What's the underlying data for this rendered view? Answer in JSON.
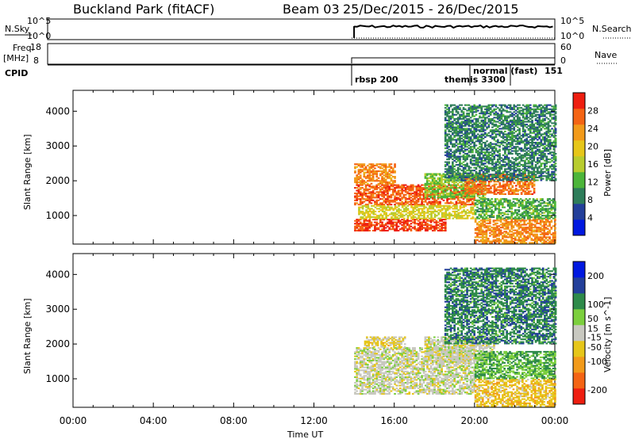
{
  "header": {
    "station": "Buckland Park (fitACF)",
    "beam": "Beam 03",
    "date_range": "25/Dec/2015 - 26/Dec/2015"
  },
  "noise_panel": {
    "left_label": "N.Sky",
    "left_ticks": [
      "10^5",
      "10^0"
    ],
    "right_ticks": [
      "10^5",
      "10^0"
    ],
    "right_label": "N.Search"
  },
  "freq_panel": {
    "left_label_1": "Freq.",
    "left_label_2": "[MHz]",
    "left_ticks": [
      "18",
      "8"
    ],
    "right_ticks": [
      "60",
      "0"
    ],
    "right_label": "Nave"
  },
  "cpid": {
    "label": "CPID",
    "segments": [
      {
        "name": "rbsp 200",
        "start_hour": 14.0
      },
      {
        "name": "themis 3300",
        "start_hour": 20.0
      },
      {
        "name": "normal (fast)",
        "start_hour": 20.0
      },
      {
        "name": "151",
        "start_hour": 22.0
      }
    ]
  },
  "x_axis": {
    "label": "Time UT",
    "ticks": [
      "00:00",
      "04:00",
      "08:00",
      "12:00",
      "16:00",
      "20:00",
      "00:00"
    ]
  },
  "colors": {
    "power_scale": [
      "#0018e0",
      "#233f9a",
      "#2e7d5a",
      "#4cb53a",
      "#b8cc2e",
      "#e6c619",
      "#f29a1a",
      "#f46414",
      "#ee1e10"
    ],
    "velocity_scale": [
      "#ee1e10",
      "#f46414",
      "#f29a1a",
      "#e6c619",
      "#c8c8c0",
      "#7ccf3e",
      "#2e8a4a",
      "#233f9a",
      "#0018e0"
    ]
  },
  "chart_data": [
    {
      "type": "heatmap",
      "name": "power",
      "ylabel": "Slant Range [km]",
      "yticks": [
        "1000",
        "2000",
        "3000",
        "4000"
      ],
      "ylim": [
        180,
        4600
      ],
      "xlim": [
        0,
        24
      ],
      "colorbar_label": "Power [dB]",
      "colorbar_ticks": [
        "4",
        "8",
        "12",
        "16",
        "20",
        "24",
        "28"
      ],
      "colorbar_range": [
        0,
        32
      ],
      "regions": [
        {
          "t0": 14.0,
          "t1": 20.0,
          "r0": 1300,
          "r1": 1900,
          "value": 27
        },
        {
          "t0": 14.0,
          "t1": 16.0,
          "r0": 1900,
          "r1": 2500,
          "value": 24
        },
        {
          "t0": 14.0,
          "t1": 18.5,
          "r0": 550,
          "r1": 900,
          "value": 29
        },
        {
          "t0": 14.2,
          "t1": 20.0,
          "r0": 900,
          "r1": 1300,
          "value": 18
        },
        {
          "t0": 17.5,
          "t1": 20.5,
          "r0": 1500,
          "r1": 2200,
          "value": 14
        },
        {
          "t0": 19.5,
          "t1": 23.0,
          "r0": 1600,
          "r1": 2200,
          "value": 26
        },
        {
          "t0": 20.0,
          "t1": 24.0,
          "r0": 200,
          "r1": 900,
          "value": 24
        },
        {
          "t0": 20.0,
          "t1": 24.0,
          "r0": 900,
          "r1": 1500,
          "value": 12
        },
        {
          "t0": 18.5,
          "t1": 24.0,
          "r0": 2000,
          "r1": 4200,
          "value": 9
        }
      ]
    },
    {
      "type": "heatmap",
      "name": "velocity",
      "ylabel": "Slant Range [km]",
      "yticks": [
        "1000",
        "2000",
        "3000",
        "4000"
      ],
      "ylim": [
        180,
        4600
      ],
      "xlim": [
        0,
        24
      ],
      "colorbar_label": "Velocity [m s^-1]",
      "colorbar_ticks": [
        "-200",
        "-100",
        "-50",
        "-15",
        "15",
        "50",
        "100",
        "200"
      ],
      "colorbar_range": [
        -250,
        250
      ],
      "regions": [
        {
          "t0": 14.0,
          "t1": 20.0,
          "r0": 550,
          "r1": 1900,
          "value": 0
        },
        {
          "t0": 14.5,
          "t1": 16.5,
          "r0": 1900,
          "r1": 2200,
          "value": -40
        },
        {
          "t0": 17.5,
          "t1": 21.0,
          "r0": 1500,
          "r1": 2200,
          "value": 0
        },
        {
          "t0": 20.0,
          "t1": 24.0,
          "r0": 200,
          "r1": 1000,
          "value": -60
        },
        {
          "t0": 20.0,
          "t1": 24.0,
          "r0": 1000,
          "r1": 1800,
          "value": 80
        },
        {
          "t0": 18.5,
          "t1": 24.0,
          "r0": 2000,
          "r1": 4200,
          "value": 120
        }
      ]
    }
  ]
}
